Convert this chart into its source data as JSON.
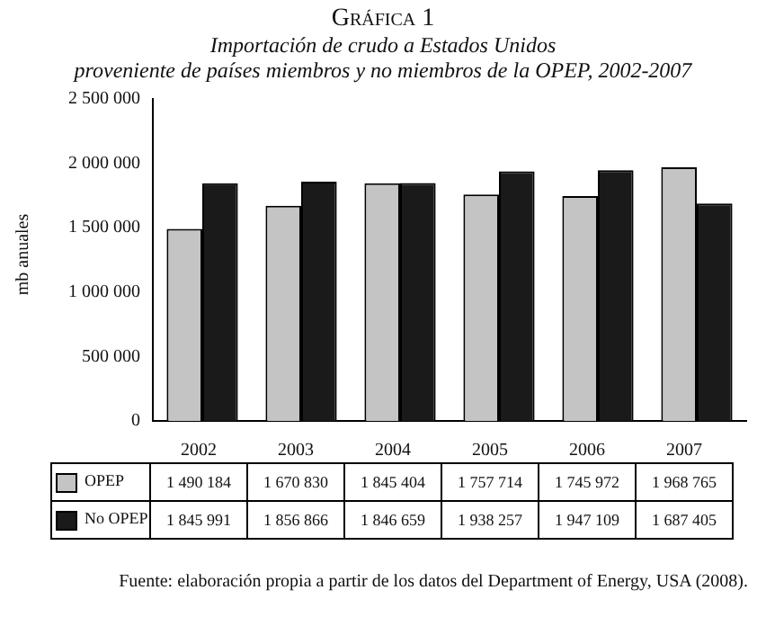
{
  "chart_data": {
    "type": "bar",
    "title": "Gráfica 1",
    "subtitle": "Importación de crudo a Estados Unidos\nproveniente de países miembros y no miembros de la OPEP, 2002-2007",
    "ylabel": "mb anuales",
    "categories": [
      "2002",
      "2003",
      "2004",
      "2005",
      "2006",
      "2007"
    ],
    "series": [
      {
        "name": "OPEP",
        "color": "#c4c4c4",
        "values": [
          1490184,
          1670830,
          1845404,
          1757714,
          1745972,
          1968765
        ],
        "value_labels": [
          "1 490 184",
          "1 670 830",
          "1 845 404",
          "1 757 714",
          "1 745 972",
          "1 968 765"
        ]
      },
      {
        "name": "No OPEP",
        "color": "#1a1a1a",
        "values": [
          1845991,
          1856866,
          1846659,
          1938257,
          1947109,
          1687405
        ],
        "value_labels": [
          "1 845 991",
          "1 856 866",
          "1 846 659",
          "1 938 257",
          "1 947 109",
          "1 687 405"
        ]
      }
    ],
    "ylim": [
      0,
      2500000
    ],
    "yticks": [
      {
        "value": 0,
        "label": "0"
      },
      {
        "value": 500000,
        "label": "500 000"
      },
      {
        "value": 1000000,
        "label": "1 000 000"
      },
      {
        "value": 1500000,
        "label": "1 500 000"
      },
      {
        "value": 2000000,
        "label": "2 000 000"
      },
      {
        "value": 2500000,
        "label": "2 500 000"
      }
    ],
    "legend": "bottom",
    "annotations": [
      "Fuente: elaboración propia a partir de los datos del Department of Energy, USA (2008)."
    ]
  }
}
